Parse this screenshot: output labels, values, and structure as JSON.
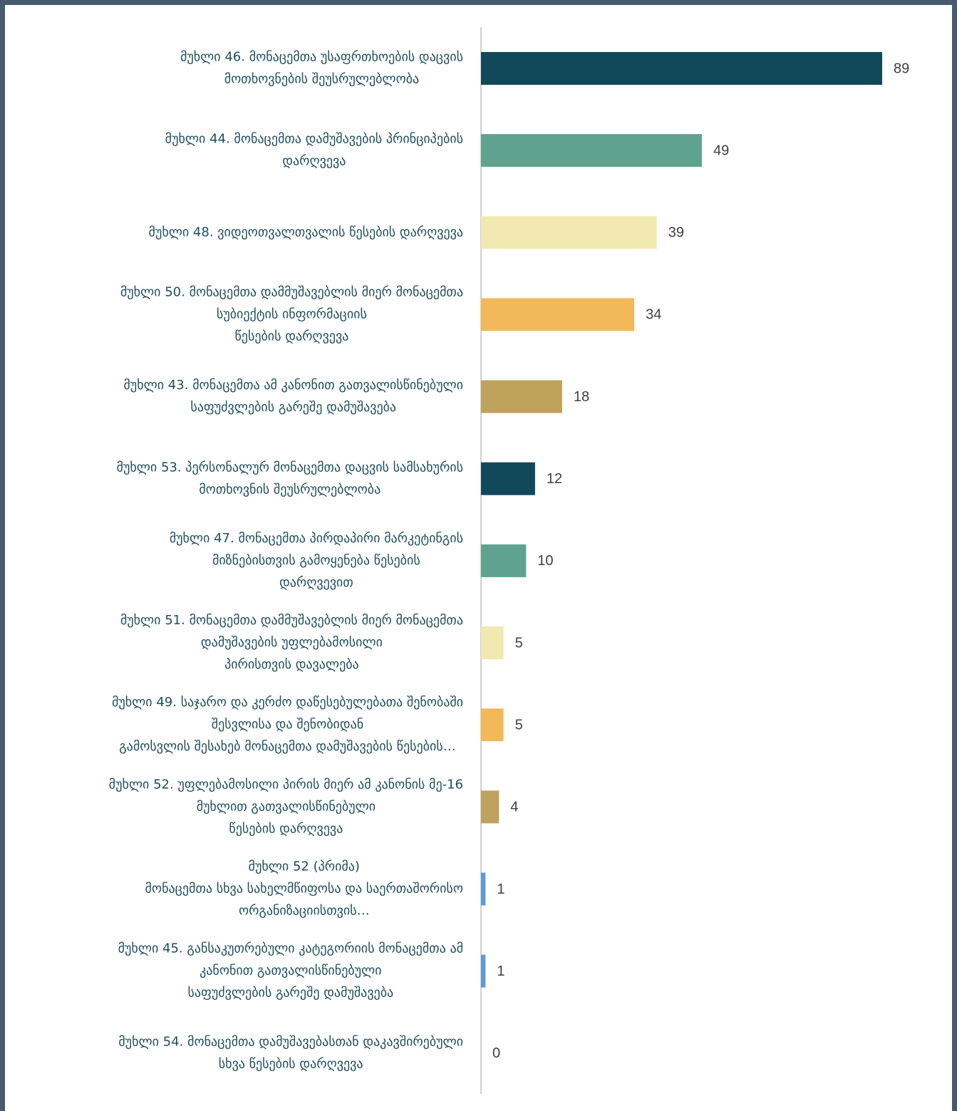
{
  "chart_data": {
    "type": "barh",
    "categories": [
      [
        "მუხლი 46. მონაცემთა უსაფრთხოების დაცვის",
        "მოთხოვნების შეუსრულებლობა"
      ],
      [
        "მუხლი 44. მონაცემთა დამუშავების პრინციპების",
        "დარღვევა"
      ],
      [
        "მუხლი 48. ვიდეოთვალთვალის წესების დარღვევა"
      ],
      [
        "მუხლი 50. მონაცემთა დამმუშავებლის მიერ მონაცემთა",
        "სუბიექტის ინფორმაციის",
        "წესების დარღვევა"
      ],
      [
        "მუხლი 43. მონაცემთა ამ კანონით გათვალისწინებული",
        "საფუძვლების გარეშე დამუშავება"
      ],
      [
        "მუხლი 53. პერსონალურ მონაცემთა დაცვის სამსახურის",
        "მოთხოვნის შეუსრულებლობა"
      ],
      [
        "მუხლი 47. მონაცემთა პირდაპირი მარკეტინგის",
        "მიზნებისთვის გამოყენება წესების",
        "დარღვევით"
      ],
      [
        "მუხლი 51. მონაცემთა დამმუშავებლის მიერ მონაცემთა",
        "დამუშავების უფლებამოსილი",
        "პირისთვის დავალება"
      ],
      [
        "მუხლი 49. საჯარო და კერძო დაწესებულებათა შენობაში",
        "შესვლისა და შენობიდან",
        "გამოსვლის შესახებ მონაცემთა დამუშავების წესების…"
      ],
      [
        "მუხლი 52. უფლებამოსილი პირის მიერ ამ კანონის მე-16",
        "მუხლით გათვალისწინებული",
        "წესების დარღვევა"
      ],
      [
        "მუხლი 52 (პრიმა)",
        "მონაცემთა სხვა სახელმწიფოსა და საერთაშორისო",
        "ორგანიზაციისთვის…"
      ],
      [
        "მუხლი 45. განსაკუთრებული კატეგორიის მონაცემთა ამ",
        "კანონით გათვალისწინებული",
        "საფუძვლების გარეშე დამუშავება"
      ],
      [
        "მუხლი 54. მონაცემთა დამუშავებასთან დაკავშირებული",
        "სხვა წესების დარღვევა"
      ]
    ],
    "values": [
      89,
      49,
      39,
      34,
      18,
      12,
      10,
      5,
      5,
      4,
      1,
      1,
      0
    ],
    "colors": [
      "#12495a",
      "#5fa38e",
      "#f2e9b0",
      "#f2b95a",
      "#bfa35c",
      "#12495a",
      "#5fa38e",
      "#f2e9b0",
      "#f2b95a",
      "#bfa35c",
      "#5b9bd5",
      "#5b9bd5",
      "#5b9bd5"
    ]
  }
}
